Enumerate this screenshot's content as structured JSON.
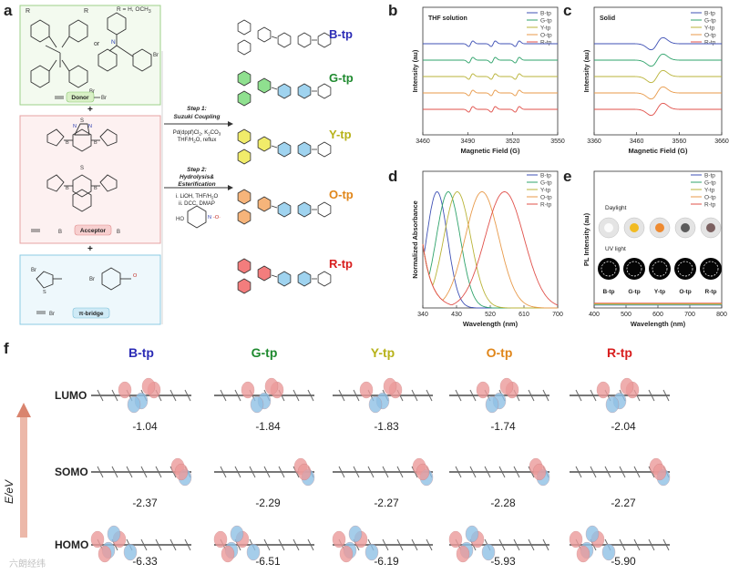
{
  "panel_letters": {
    "a": "a",
    "b": "b",
    "c": "c",
    "d": "d",
    "e": "e",
    "f": "f"
  },
  "scheme": {
    "r_label": "R = H, OCH",
    "r_label_sub": "3",
    "or_text": "or",
    "donor_label": "Donor",
    "donor_br": "Br",
    "acceptor_label": "Acceptor",
    "bridge_label": "π-bridge",
    "br": "Br",
    "plus": "+",
    "step1_title": "Step 1:",
    "step1_sub": "Suzuki Coupling",
    "step1_cond1": "Pd(dppf)Cl",
    "step1_cond1b": "2",
    "step1_cond1c": ", K",
    "step1_cond1d": "2",
    "step1_cond1e": "CO",
    "step1_cond1f": "3",
    "step1_cond2": "THF/H",
    "step1_cond2b": "2",
    "step1_cond2c": "O, reflux",
    "step2_title": "Step 2:",
    "step2_sub1": "Hydrolysis&",
    "step2_sub2": "Esterification",
    "step2_cond1": "i. LiOH, THF/H",
    "step2_cond1b": "2",
    "step2_cond1c": "O",
    "step2_cond2": "ii. DCC, DMAP",
    "tempo_label": "HO",
    "products": [
      {
        "name": "B-tp",
        "color": "#2b2bb5"
      },
      {
        "name": "G-tp",
        "color": "#1f8a2f"
      },
      {
        "name": "Y-tp",
        "color": "#b7b21a"
      },
      {
        "name": "O-tp",
        "color": "#e0861a"
      },
      {
        "name": "R-tp",
        "color": "#d81e1e"
      }
    ]
  },
  "series_colors": {
    "B-tp": "#3f51b5",
    "G-tp": "#2fa36b",
    "Y-tp": "#b9b338",
    "O-tp": "#e89a4a",
    "R-tp": "#e0504a"
  },
  "chart_data": [
    {
      "panel": "b",
      "type": "line",
      "title": "THF solution",
      "xlabel": "Magnetic Field (G)",
      "ylabel": "Intensity (au)",
      "xlim": [
        3460,
        3550
      ],
      "xticks": [
        3460,
        3490,
        3520,
        3550
      ],
      "legend_position": "top-right",
      "series": [
        {
          "name": "B-tp",
          "lines": [
            3492,
            3507,
            3523
          ]
        },
        {
          "name": "G-tp",
          "lines": [
            3492,
            3507,
            3523
          ]
        },
        {
          "name": "Y-tp",
          "lines": [
            3492,
            3507,
            3523
          ]
        },
        {
          "name": "O-tp",
          "lines": [
            3492,
            3507,
            3523
          ]
        },
        {
          "name": "R-tp",
          "lines": [
            3492,
            3507,
            3523
          ]
        }
      ]
    },
    {
      "panel": "c",
      "type": "line",
      "title": "Solid",
      "xlabel": "Magnetic Field (G)",
      "ylabel": "Intensity (au)",
      "xlim": [
        3360,
        3660
      ],
      "xticks": [
        3360,
        3460,
        3560,
        3660
      ],
      "legend_position": "top-right",
      "series": [
        {
          "name": "B-tp",
          "center": 3508
        },
        {
          "name": "G-tp",
          "center": 3508
        },
        {
          "name": "Y-tp",
          "center": 3508
        },
        {
          "name": "O-tp",
          "center": 3508
        },
        {
          "name": "R-tp",
          "center": 3508
        }
      ]
    },
    {
      "panel": "d",
      "type": "line",
      "title": "",
      "xlabel": "Wavelength (nm)",
      "ylabel": "Normalized Absorbance",
      "xlim": [
        340,
        700
      ],
      "xticks": [
        340,
        430,
        520,
        610,
        700
      ],
      "legend_position": "top-right",
      "series": [
        {
          "name": "B-tp",
          "peak_nm": 378
        },
        {
          "name": "G-tp",
          "peak_nm": 408
        },
        {
          "name": "Y-tp",
          "peak_nm": 432
        },
        {
          "name": "O-tp",
          "peak_nm": 498
        },
        {
          "name": "R-tp",
          "peak_nm": 558
        }
      ]
    },
    {
      "panel": "e",
      "type": "line",
      "title": "",
      "xlabel": "Wavelength (nm)",
      "ylabel": "PL Intensity (au)",
      "xlim": [
        400,
        800
      ],
      "xticks": [
        400,
        500,
        600,
        700,
        800
      ],
      "legend_position": "top-right",
      "inset": {
        "daylight_label": "Daylight",
        "uv_label": "UV light",
        "samples": [
          "B-tp",
          "G-tp",
          "Y-tp",
          "O-tp",
          "R-tp"
        ],
        "daylight_colors": [
          "#f0f0f0",
          "#f5c23a",
          "#e8e8e8",
          "#7a7a7a",
          "#9a8a8a"
        ],
        "powder_colors": [
          "#ffffff",
          "#f4b400",
          "#f07a10",
          "#444444",
          "#6a4a4a"
        ]
      }
    },
    {
      "panel": "f",
      "type": "table",
      "axis_label": "E/eV",
      "columns": [
        "B-tp",
        "G-tp",
        "Y-tp",
        "O-tp",
        "R-tp"
      ],
      "rows": [
        {
          "name": "LUMO",
          "values": [
            -1.04,
            -1.84,
            -1.83,
            -1.74,
            -2.04
          ]
        },
        {
          "name": "SOMO",
          "values": [
            -2.37,
            -2.29,
            -2.27,
            -2.28,
            -2.27
          ]
        },
        {
          "name": "HOMO",
          "values": [
            -6.33,
            -6.51,
            -6.19,
            -5.93,
            -5.9
          ]
        }
      ],
      "value_labels": {
        "LUMO": [
          "-1.04",
          "-1.84",
          "-1.83",
          "-1.74",
          "-2.04"
        ],
        "SOMO": [
          "-2.37",
          "-2.29",
          "-2.27",
          "-2.28",
          "-2.27"
        ],
        "HOMO": [
          "-6.33",
          "-6.51",
          "-6.19",
          "-5.93",
          "-5.90"
        ]
      }
    }
  ],
  "watermark": "六朗经纬"
}
